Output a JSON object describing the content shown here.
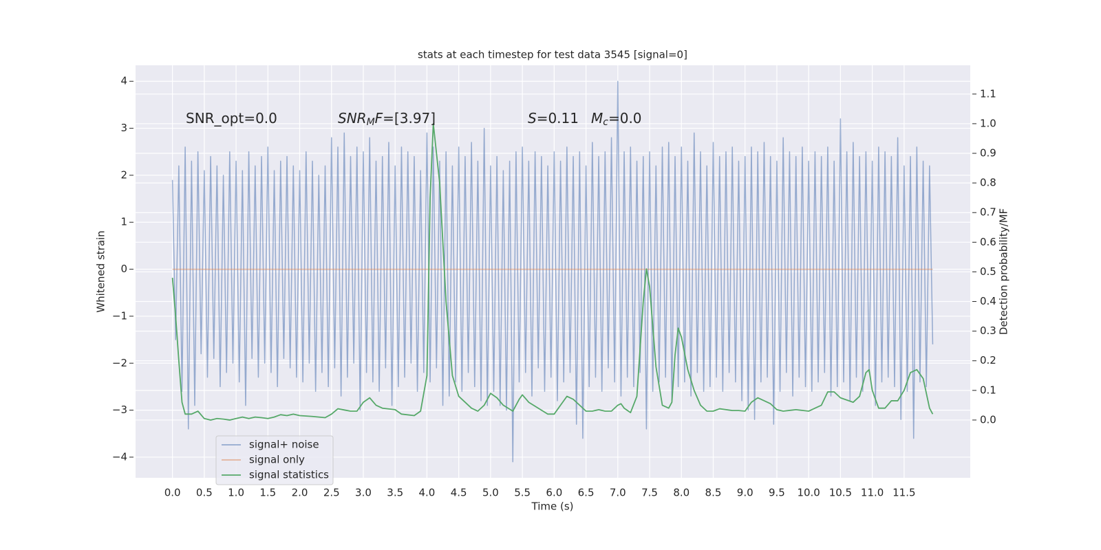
{
  "chart_data": {
    "type": "line",
    "title": "stats at each timestep for test data 3545 [signal=0]",
    "xlabel": "Time (s)",
    "ylabel": "Whitened strain",
    "y2label": "Detection probability/MF",
    "xlim": [
      -0.58,
      12.54
    ],
    "ylim": [
      -4.44,
      4.34
    ],
    "y2lim": [
      -0.195,
      1.197
    ],
    "xticks": [
      {
        "value": 0,
        "label": "0.0"
      },
      0.5,
      {
        "value": 1,
        "label": "1.0"
      },
      1.5,
      {
        "value": 2,
        "label": "2.0"
      },
      2.5,
      {
        "value": 3,
        "label": "3.0"
      },
      3.5,
      {
        "value": 4,
        "label": "4.0"
      },
      4.5,
      {
        "value": 5,
        "label": "5.0"
      },
      5.5,
      {
        "value": 6,
        "label": "6.0"
      },
      6.5,
      {
        "value": 7,
        "label": "7.0"
      },
      7.5,
      {
        "value": 8,
        "label": "8.0"
      },
      8.5,
      {
        "value": 9,
        "label": "9.0"
      },
      9.5,
      {
        "value": 10,
        "label": "10.0"
      },
      10.5,
      {
        "value": 11,
        "label": "11.0"
      },
      11.5
    ],
    "yticks": [
      {
        "value": -4,
        "label": "−4"
      },
      {
        "value": -3,
        "label": "−3"
      },
      {
        "value": -2,
        "label": "−2"
      },
      {
        "value": -1,
        "label": "−1"
      },
      0,
      1,
      2,
      3,
      4
    ],
    "y2ticks": [
      {
        "value": 0,
        "label": "0.0"
      },
      0.1,
      0.2,
      0.3,
      0.4,
      0.5,
      0.6,
      0.7,
      0.8,
      0.9,
      {
        "value": 1,
        "label": "1.0"
      },
      1.1
    ],
    "grid": true,
    "legend": "lower left",
    "annotations": [
      [
        {
          "t": "SNR_opt=0.0"
        }
      ],
      [
        {
          "t": "SNR",
          "italic": true
        },
        {
          "t": "M",
          "italic": true,
          "sub": true
        },
        {
          "t": "F",
          "italic": true
        },
        {
          "t": "=[3.97]"
        }
      ],
      [
        {
          "t": "S",
          "italic": true
        },
        {
          "t": "=0.11"
        }
      ],
      [
        {
          "t": "M",
          "italic": true
        },
        {
          "t": "c",
          "italic": true,
          "sub": true
        },
        {
          "t": "=0.0"
        }
      ]
    ],
    "series": [
      {
        "name": "signal+ noise",
        "color": "#4c72b0",
        "alpha": 0.55,
        "x": [
          0,
          0.05,
          0.1,
          0.15,
          0.2,
          0.25,
          0.3,
          0.35,
          0.4,
          0.45,
          0.5,
          0.55,
          0.6,
          0.65,
          0.7,
          0.75,
          0.8,
          0.85,
          0.9,
          0.95,
          1,
          1.05,
          1.1,
          1.15,
          1.2,
          1.25,
          1.3,
          1.35,
          1.4,
          1.45,
          1.5,
          1.55,
          1.6,
          1.65,
          1.7,
          1.75,
          1.8,
          1.85,
          1.9,
          1.95,
          2,
          2.05,
          2.1,
          2.15,
          2.2,
          2.25,
          2.3,
          2.35,
          2.4,
          2.45,
          2.5,
          2.55,
          2.6,
          2.65,
          2.7,
          2.75,
          2.8,
          2.85,
          2.9,
          2.95,
          3,
          3.05,
          3.1,
          3.15,
          3.2,
          3.25,
          3.3,
          3.35,
          3.4,
          3.45,
          3.5,
          3.55,
          3.6,
          3.65,
          3.7,
          3.75,
          3.8,
          3.85,
          3.9,
          3.95,
          4,
          4.05,
          4.1,
          4.15,
          4.2,
          4.25,
          4.3,
          4.35,
          4.4,
          4.45,
          4.5,
          4.55,
          4.6,
          4.65,
          4.7,
          4.75,
          4.8,
          4.85,
          4.9,
          4.95,
          5,
          5.05,
          5.1,
          5.15,
          5.2,
          5.25,
          5.3,
          5.35,
          5.4,
          5.45,
          5.5,
          5.55,
          5.6,
          5.65,
          5.7,
          5.75,
          5.8,
          5.85,
          5.9,
          5.95,
          6,
          6.05,
          6.1,
          6.15,
          6.2,
          6.25,
          6.3,
          6.35,
          6.4,
          6.45,
          6.5,
          6.55,
          6.6,
          6.65,
          6.7,
          6.75,
          6.8,
          6.85,
          6.9,
          6.95,
          7,
          7.05,
          7.1,
          7.15,
          7.2,
          7.25,
          7.3,
          7.35,
          7.4,
          7.45,
          7.5,
          7.55,
          7.6,
          7.65,
          7.7,
          7.75,
          7.8,
          7.85,
          7.9,
          7.95,
          8,
          8.05,
          8.1,
          8.15,
          8.2,
          8.25,
          8.3,
          8.35,
          8.4,
          8.45,
          8.5,
          8.55,
          8.6,
          8.65,
          8.7,
          8.75,
          8.8,
          8.85,
          8.9,
          8.95,
          9,
          9.05,
          9.1,
          9.15,
          9.2,
          9.25,
          9.3,
          9.35,
          9.4,
          9.45,
          9.5,
          9.55,
          9.6,
          9.65,
          9.7,
          9.75,
          9.8,
          9.85,
          9.9,
          9.95,
          10,
          10.05,
          10.1,
          10.15,
          10.2,
          10.25,
          10.3,
          10.35,
          10.4,
          10.45,
          10.5,
          10.55,
          10.6,
          10.65,
          10.7,
          10.75,
          10.8,
          10.85,
          10.9,
          10.95,
          11,
          11.05,
          11.1,
          11.15,
          11.2,
          11.25,
          11.3,
          11.35,
          11.4,
          11.45,
          11.5,
          11.55,
          11.6,
          11.65,
          11.7,
          11.75,
          11.8,
          11.85,
          11.9,
          11.95
        ],
        "values": [
          1.9,
          -1.5,
          2.2,
          -2.6,
          2.6,
          -3.4,
          2.3,
          -2.9,
          2.5,
          -1.8,
          2.1,
          -2.3,
          2.4,
          -1.9,
          2.2,
          -2.5,
          2.0,
          -2.2,
          2.5,
          -2.0,
          2.3,
          -2.4,
          2.1,
          -2.9,
          2.5,
          -1.9,
          2.2,
          -2.3,
          2.4,
          -2.0,
          2.6,
          -2.2,
          2.1,
          -2.5,
          2.3,
          -1.9,
          2.4,
          -2.1,
          2.2,
          -2.3,
          2.1,
          -2.4,
          2.5,
          -2.0,
          2.3,
          -2.6,
          2.0,
          -2.2,
          2.2,
          -2.5,
          2.8,
          -2.1,
          2.6,
          -2.7,
          2.9,
          -2.3,
          2.4,
          -2.0,
          2.6,
          -3.0,
          2.5,
          -2.2,
          2.8,
          -2.4,
          2.3,
          -2.6,
          2.4,
          -2.1,
          2.7,
          -2.9,
          2.2,
          -2.5,
          2.6,
          -2.3,
          2.5,
          -2.0,
          2.4,
          -2.6,
          2.1,
          -2.2,
          2.9,
          -2.4,
          2.6,
          -2.1,
          2.3,
          -2.9,
          2.5,
          -2.7,
          2.2,
          -2.4,
          2.6,
          -2.6,
          2.4,
          -2.2,
          2.7,
          -2.5,
          2.3,
          -2.8,
          3.0,
          -2.9,
          2.2,
          -2.6,
          2.4,
          -2.9,
          2.1,
          -3.0,
          2.3,
          -4.1,
          2.5,
          -2.4,
          2.6,
          -2.2,
          2.3,
          -2.7,
          2.5,
          -2.1,
          2.4,
          -2.6,
          2.2,
          -2.3,
          2.5,
          -2.8,
          2.3,
          -2.4,
          2.6,
          -2.2,
          2.4,
          -3.3,
          2.5,
          -3.6,
          2.2,
          -2.5,
          2.7,
          -2.3,
          2.4,
          -2.6,
          2.5,
          -2.1,
          2.8,
          -2.4,
          4.0,
          -2.7,
          2.5,
          -2.3,
          2.6,
          -2.5,
          2.3,
          -2.2,
          2.4,
          -3.4,
          2.5,
          -2.6,
          2.2,
          -2.4,
          2.6,
          -2.3,
          2.7,
          -2.8,
          2.4,
          -2.5,
          2.6,
          -2.4,
          2.3,
          -2.7,
          2.9,
          -2.2,
          2.5,
          -2.6,
          2.2,
          -2.5,
          2.7,
          -2.3,
          2.4,
          -2.6,
          2.5,
          -2.2,
          2.6,
          -2.4,
          2.3,
          -2.8,
          2.4,
          -3.0,
          2.6,
          -3.2,
          2.5,
          -2.4,
          2.7,
          -2.3,
          2.4,
          -3.3,
          2.3,
          -2.6,
          2.8,
          -2.2,
          2.5,
          -2.7,
          2.4,
          -2.3,
          2.6,
          -2.5,
          2.3,
          -2.6,
          2.5,
          -2.4,
          2.4,
          -2.2,
          2.6,
          -2.7,
          2.3,
          -2.5,
          3.2,
          -2.4,
          2.5,
          -2.8,
          2.7,
          -2.3,
          2.4,
          -2.6,
          2.5,
          -2.2,
          2.3,
          -2.9,
          2.6,
          -2.4,
          2.5,
          -2.3,
          2.4,
          -2.5,
          2.8,
          -3.2,
          2.2,
          -2.6,
          2.4,
          -3.6,
          2.6,
          -2.4,
          2.3,
          -2.5,
          2.2,
          -1.6
        ]
      },
      {
        "name": "signal only",
        "color": "#dd8452",
        "alpha": 0.55,
        "x": [
          0,
          11.95
        ],
        "values": [
          0,
          0
        ]
      },
      {
        "name": "signal statistics",
        "color": "#55a868",
        "alpha": 1,
        "axis": "y2",
        "x": [
          0,
          0.05,
          0.1,
          0.15,
          0.2,
          0.3,
          0.4,
          0.5,
          0.6,
          0.7,
          0.8,
          0.9,
          1,
          1.1,
          1.2,
          1.3,
          1.4,
          1.5,
          1.6,
          1.7,
          1.8,
          1.9,
          2,
          2.2,
          2.4,
          2.5,
          2.6,
          2.8,
          2.9,
          3,
          3.1,
          3.2,
          3.3,
          3.5,
          3.6,
          3.8,
          3.9,
          4,
          4.05,
          4.1,
          4.2,
          4.3,
          4.4,
          4.5,
          4.6,
          4.7,
          4.8,
          4.9,
          5,
          5.1,
          5.2,
          5.35,
          5.45,
          5.5,
          5.6,
          5.75,
          5.9,
          6,
          6.1,
          6.2,
          6.3,
          6.4,
          6.5,
          6.6,
          6.7,
          6.8,
          6.9,
          7,
          7.05,
          7.1,
          7.2,
          7.3,
          7.4,
          7.45,
          7.5,
          7.6,
          7.7,
          7.8,
          7.85,
          7.9,
          7.95,
          8,
          8.1,
          8.2,
          8.3,
          8.4,
          8.5,
          8.6,
          8.8,
          8.9,
          9,
          9.1,
          9.2,
          9.4,
          9.5,
          9.6,
          9.8,
          10,
          10.1,
          10.2,
          10.3,
          10.4,
          10.5,
          10.7,
          10.8,
          10.9,
          10.95,
          11,
          11.1,
          11.2,
          11.3,
          11.4,
          11.5,
          11.6,
          11.7,
          11.8,
          11.9,
          11.95
        ],
        "values": [
          0.48,
          0.35,
          0.2,
          0.06,
          0.02,
          0.02,
          0.03,
          0.005,
          0,
          0.005,
          0.003,
          0,
          0.005,
          0.01,
          0.005,
          0.01,
          0.008,
          0.005,
          0.01,
          0.018,
          0.015,
          0.02,
          0.015,
          0.012,
          0.008,
          0.02,
          0.038,
          0.03,
          0.03,
          0.06,
          0.075,
          0.05,
          0.04,
          0.035,
          0.02,
          0.015,
          0.03,
          0.15,
          0.75,
          1.0,
          0.8,
          0.4,
          0.15,
          0.08,
          0.06,
          0.04,
          0.03,
          0.05,
          0.09,
          0.075,
          0.05,
          0.03,
          0.07,
          0.085,
          0.06,
          0.04,
          0.02,
          0.02,
          0.05,
          0.08,
          0.07,
          0.05,
          0.03,
          0.03,
          0.035,
          0.03,
          0.03,
          0.05,
          0.055,
          0.04,
          0.025,
          0.08,
          0.4,
          0.51,
          0.45,
          0.18,
          0.05,
          0.04,
          0.06,
          0.22,
          0.31,
          0.28,
          0.17,
          0.1,
          0.05,
          0.03,
          0.03,
          0.038,
          0.032,
          0.032,
          0.03,
          0.06,
          0.075,
          0.055,
          0.035,
          0.03,
          0.035,
          0.03,
          0.04,
          0.05,
          0.095,
          0.095,
          0.075,
          0.06,
          0.08,
          0.16,
          0.17,
          0.1,
          0.04,
          0.04,
          0.065,
          0.065,
          0.1,
          0.16,
          0.17,
          0.14,
          0.04,
          0.02
        ]
      }
    ]
  }
}
